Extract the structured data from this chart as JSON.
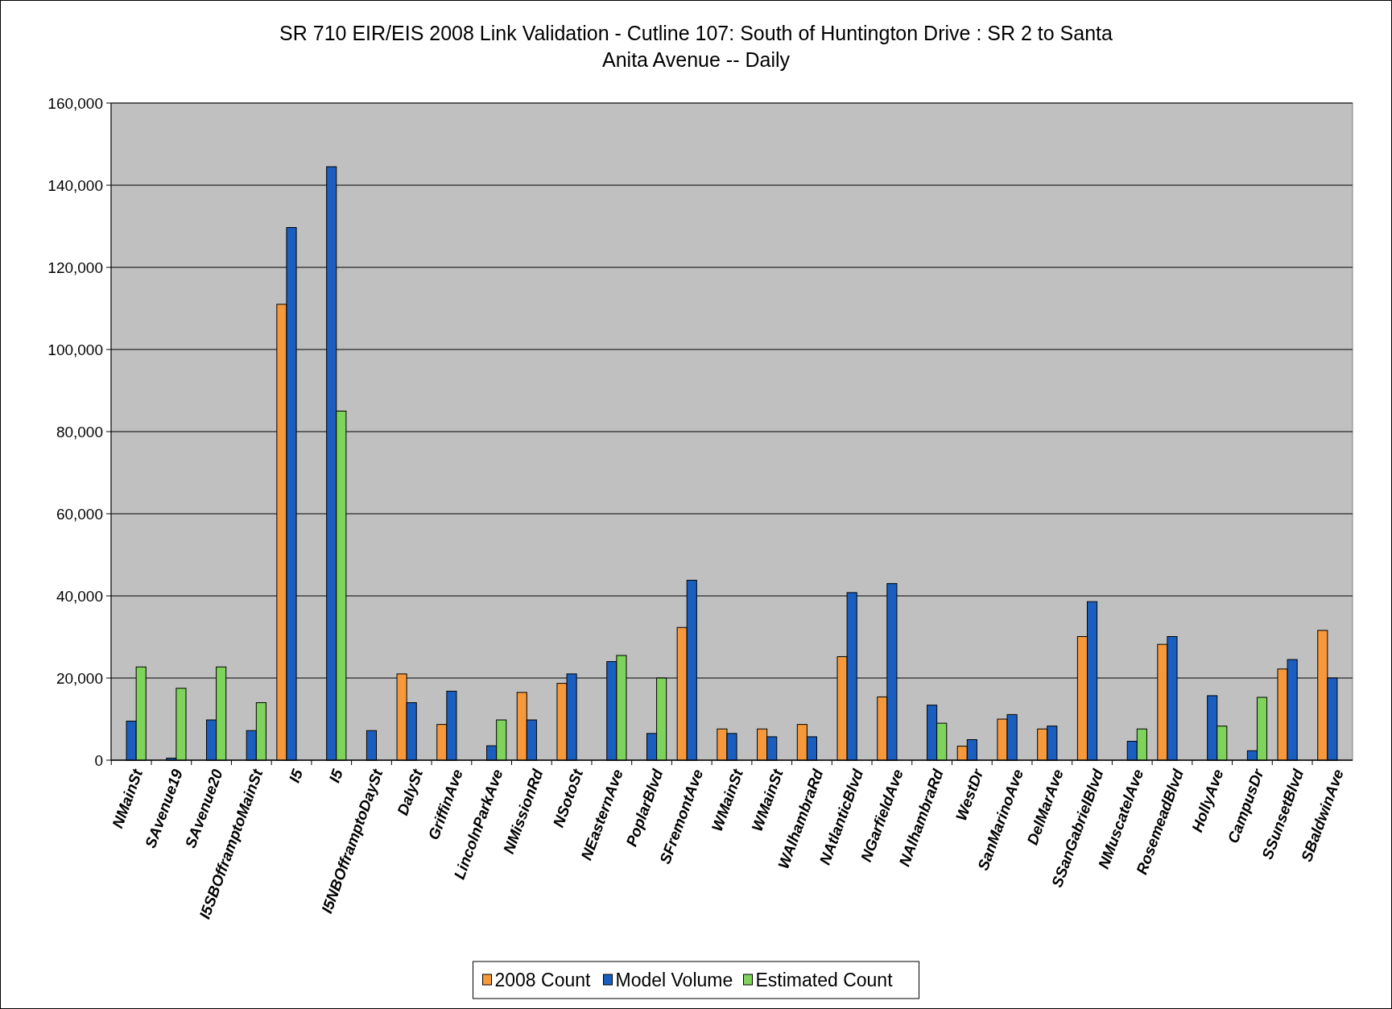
{
  "chart_data": {
    "type": "bar",
    "title": "SR 710 EIR/EIS 2008 Link Validation - Cutline 107: South of Huntington Drive : SR 2 to Santa Anita Avenue -- Daily",
    "categories": [
      "NMainSt",
      "SAvenue19",
      "SAvenue20",
      "I5SBOfframptoMainSt",
      "I5",
      "I5",
      "I5NBOfframptoDaySt",
      "DalySt",
      "GriffinAve",
      "LincolnParkAve",
      "NMissionRd",
      "NSotoSt",
      "NEasternAve",
      "PoplarBlvd",
      "SFremontAve",
      "WMainSt",
      "WMainSt",
      "WAlhambraRd",
      "NAtlanticBlvd",
      "NGarfieldAve",
      "NAlhambraRd",
      "WestDr",
      "SanMarinoAve",
      "DelMarAve",
      "SSanGabrielBlvd",
      "NMuscatelAve",
      "RosemeadBlvd",
      "HollyAve",
      "CampusDr",
      "SSunsetBlvd",
      "SBaldwinAve"
    ],
    "series": [
      {
        "name": "2008 Count",
        "color": "#f7993b",
        "values": [
          null,
          null,
          null,
          null,
          111000,
          null,
          null,
          21000,
          8700,
          null,
          16500,
          18700,
          null,
          null,
          32300,
          7600,
          7600,
          8700,
          25200,
          15400,
          null,
          3400,
          10000,
          7600,
          30100,
          null,
          28200,
          null,
          null,
          22200,
          31600
        ]
      },
      {
        "name": "Model Volume",
        "color": "#1a5fc0",
        "values": [
          9500,
          500,
          9800,
          7200,
          129700,
          144500,
          7200,
          14000,
          16800,
          3500,
          9800,
          21000,
          24000,
          6500,
          43800,
          6500,
          5700,
          5700,
          40800,
          43000,
          13400,
          5000,
          11100,
          8300,
          38600,
          4600,
          30100,
          15700,
          2300,
          24500,
          20000
        ]
      },
      {
        "name": "Estimated Count",
        "color": "#7ed35a",
        "values": [
          22700,
          17500,
          22700,
          14000,
          null,
          85000,
          null,
          null,
          null,
          9800,
          null,
          null,
          25500,
          20000,
          null,
          null,
          null,
          null,
          null,
          null,
          9000,
          null,
          null,
          null,
          null,
          7600,
          null,
          8300,
          15300,
          null,
          null
        ]
      }
    ],
    "ylim": [
      0,
      160000
    ],
    "yticks": [
      {
        "value": 0,
        "label": "0"
      },
      {
        "value": 20000,
        "label": "20,000"
      },
      {
        "value": 40000,
        "label": "40,000"
      },
      {
        "value": 60000,
        "label": "60,000"
      },
      {
        "value": 80000,
        "label": "80,000"
      },
      {
        "value": 100000,
        "label": "100,000"
      },
      {
        "value": 120000,
        "label": "120,000"
      },
      {
        "value": 140000,
        "label": "140,000"
      },
      {
        "value": 160000,
        "label": "160,000"
      }
    ],
    "grid": "y",
    "legend": "bottom"
  }
}
